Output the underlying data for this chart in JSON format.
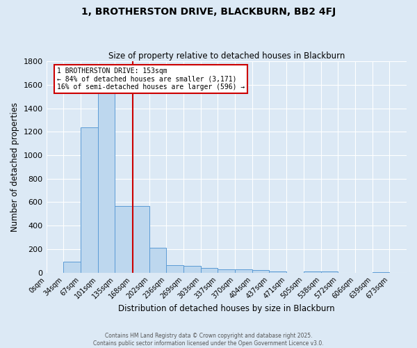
{
  "title": "1, BROTHERSTON DRIVE, BLACKBURN, BB2 4FJ",
  "subtitle": "Size of property relative to detached houses in Blackburn",
  "xlabel": "Distribution of detached houses by size in Blackburn",
  "ylabel": "Number of detached properties",
  "bar_labels": [
    "0sqm",
    "34sqm",
    "67sqm",
    "101sqm",
    "135sqm",
    "168sqm",
    "202sqm",
    "236sqm",
    "269sqm",
    "303sqm",
    "337sqm",
    "370sqm",
    "404sqm",
    "437sqm",
    "471sqm",
    "505sqm",
    "538sqm",
    "572sqm",
    "606sqm",
    "639sqm",
    "673sqm"
  ],
  "bar_values": [
    0,
    90,
    1240,
    1640,
    570,
    570,
    210,
    65,
    55,
    40,
    30,
    25,
    20,
    12,
    0,
    12,
    10,
    0,
    0,
    5,
    0
  ],
  "bar_color": "#BDD7EE",
  "bar_edge_color": "#5B9BD5",
  "vline_x": 4,
  "property_size": 153,
  "annotation_line1": "1 BROTHERSTON DRIVE: 153sqm",
  "annotation_line2": "← 84% of detached houses are smaller (3,171)",
  "annotation_line3": "16% of semi-detached houses are larger (596) →",
  "annotation_box_color": "#ffffff",
  "annotation_box_edge": "#cc0000",
  "ylim": [
    0,
    1800
  ],
  "yticks": [
    0,
    200,
    400,
    600,
    800,
    1000,
    1200,
    1400,
    1600,
    1800
  ],
  "bg_color": "#DCE9F5",
  "grid_color": "#ffffff",
  "vline_color": "#cc0000",
  "footer1": "Contains HM Land Registry data © Crown copyright and database right 2025.",
  "footer2": "Contains public sector information licensed under the Open Government Licence v3.0.",
  "bin_size": 33.5
}
